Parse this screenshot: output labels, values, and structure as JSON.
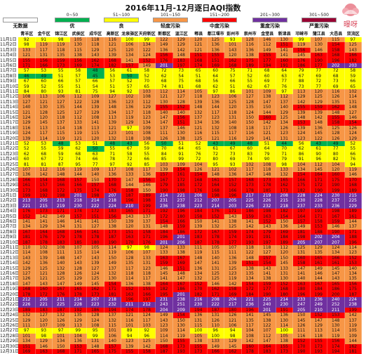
{
  "title": "2016年11月-12月逐日AQI指数",
  "legend": [
    {
      "range": "",
      "label": "无数据",
      "color": "#ffffff"
    },
    {
      "range": "0~50",
      "label": "优",
      "color": "#00b050"
    },
    {
      "range": "51~100",
      "label": "良",
      "color": "#ffff00"
    },
    {
      "range": "101~150",
      "label": "轻度污染",
      "color": "#f79646"
    },
    {
      "range": "151~200",
      "label": "中度污染",
      "color": "#ff0000"
    },
    {
      "range": "201~300",
      "label": "重度污染",
      "color": "#7030a0"
    },
    {
      "range": "301~500",
      "label": "严重污染",
      "color": "#990033"
    }
  ],
  "logo_text": "曝呀",
  "chart_data": {
    "type": "heatmap",
    "title": "2016年11月-12月逐日AQI指数",
    "columns": [
      "青羊区",
      "金牛区",
      "锦江区",
      "武侯区",
      "成华区",
      "高新区",
      "龙泉驿区",
      "天府新区",
      "新都区",
      "温江区",
      "郫县",
      "都江堰市",
      "彭州市",
      "崇州市",
      "金堂县",
      "新津县",
      "邛崃市",
      "蒲江县",
      "大邑县",
      "双流区"
    ],
    "rows": [
      "11月1日",
      "11月2日",
      "11月3日",
      "11月4日",
      "11月5日",
      "11月6日",
      "11月7日",
      "11月8日",
      "11月9日",
      "11月10日",
      "11月11日",
      "11月12日",
      "11月13日",
      "11月14日",
      "11月15日",
      "11月16日",
      "11月17日",
      "11月18日",
      "11月19日",
      "11月20日",
      "11月21日",
      "11月22日",
      "11月23日",
      "11月24日",
      "11月25日",
      "11月26日",
      "11月27日",
      "11月28日",
      "11月29日",
      "11月30日",
      "12月1日",
      "12月2日",
      "12月3日",
      "12月4日",
      "12月5日",
      "12月6日",
      "12月7日",
      "12月8日",
      "12月9日",
      "12月10日",
      "12月11日",
      "12月12日",
      "12月13日",
      "12月14日",
      "12月15日",
      "12月16日",
      "12月17日",
      "12月18日",
      "12月19日",
      "12月20日",
      "12月21日",
      "12月22日",
      "12月23日",
      "12月24日",
      "12月25日",
      "12月26日",
      "12月27日",
      "12月28日",
      "12月29日",
      "12月30日",
      "12月31日"
    ],
    "values": [
      [
        92,
        91,
        98,
        105,
        118,
        116,
        100,
        99,
        122,
        129,
        120,
        125,
        93,
        128,
        146,
        130,
        99,
        107,
        115,
        97
      ],
      [
        98,
        119,
        119,
        130,
        118,
        121,
        106,
        134,
        149,
        129,
        121,
        136,
        101,
        116,
        112,
        151,
        119,
        130,
        154,
        125
      ],
      [
        133,
        117,
        118,
        115,
        129,
        125,
        120,
        122,
        136,
        142,
        121,
        136,
        143,
        136,
        149,
        141,
        156,
        146,
        158,
        143
      ],
      [
        121,
        131,
        135,
        138,
        143,
        139,
        134,
        124,
        156,
        148,
        151,
        155,
        120,
        138,
        155,
        141,
        145,
        163,
        168,
        166
      ],
      [
        155,
        156,
        159,
        156,
        162,
        168,
        141,
        152,
        176,
        183,
        168,
        151,
        162,
        175,
        177,
        160,
        176,
        190,
        196,
        182
      ],
      [
        171,
        166,
        173,
        169,
        174,
        182,
        157,
        149,
        201,
        197,
        174,
        169,
        168,
        189,
        194,
        191,
        186,
        177,
        202,
        203
      ],
      [
        57,
        53,
        55,
        58,
        48,
        56,
        61,
        58,
        72,
        73,
        65,
        60,
        75,
        71,
        68,
        64,
        79,
        77,
        72,
        58
      ],
      [
        46,
        49,
        51,
        57,
        45,
        53,
        50,
        52,
        62,
        54,
        51,
        64,
        57,
        52,
        60,
        63,
        67,
        69,
        68,
        59
      ],
      [
        67,
        60,
        66,
        57,
        66,
        57,
        52,
        70,
        68,
        75,
        68,
        56,
        66,
        55,
        69,
        77,
        88,
        72,
        73,
        66
      ],
      [
        59,
        52,
        55,
        51,
        54,
        51,
        57,
        65,
        74,
        81,
        68,
        62,
        51,
        62,
        67,
        76,
        73,
        77,
        69,
        65
      ],
      [
        84,
        80,
        93,
        81,
        75,
        94,
        92,
        103,
        112,
        114,
        105,
        97,
        86,
        101,
        109,
        97,
        113,
        120,
        116,
        102
      ],
      [
        108,
        113,
        106,
        112,
        109,
        127,
        102,
        108,
        121,
        127,
        118,
        123,
        106,
        127,
        138,
        112,
        129,
        125,
        126,
        114
      ],
      [
        127,
        121,
        127,
        122,
        128,
        136,
        123,
        112,
        130,
        128,
        139,
        136,
        125,
        128,
        147,
        137,
        142,
        129,
        135,
        131
      ],
      [
        140,
        130,
        135,
        144,
        139,
        148,
        136,
        129,
        155,
        152,
        148,
        144,
        120,
        135,
        150,
        140,
        155,
        159,
        162,
        148
      ],
      [
        121,
        128,
        125,
        127,
        129,
        134,
        117,
        118,
        140,
        140,
        132,
        117,
        118,
        124,
        144,
        129,
        139,
        139,
        148,
        127
      ],
      [
        124,
        120,
        118,
        112,
        108,
        113,
        119,
        123,
        147,
        156,
        137,
        123,
        131,
        150,
        160,
        125,
        148,
        142,
        155,
        146
      ],
      [
        129,
        145,
        137,
        133,
        141,
        139,
        129,
        134,
        147,
        151,
        134,
        136,
        140,
        150,
        142,
        134,
        153,
        148,
        158,
        154
      ],
      [
        116,
        113,
        114,
        118,
        113,
        121,
        97,
        109,
        137,
        146,
        121,
        132,
        108,
        118,
        117,
        126,
        139,
        136,
        125,
        126
      ],
      [
        124,
        117,
        115,
        119,
        115,
        123,
        101,
        108,
        111,
        130,
        116,
        115,
        117,
        116,
        121,
        123,
        124,
        145,
        128,
        124
      ],
      [
        139,
        114,
        119,
        121,
        120,
        132,
        118,
        108,
        126,
        138,
        125,
        121,
        116,
        129,
        141,
        131,
        123,
        122,
        126,
        129
      ],
      [
        52,
        53,
        48,
        53,
        51,
        48,
        43,
        56,
        50,
        51,
        52,
        43,
        49,
        48,
        51,
        44,
        56,
        43,
        49,
        52
      ],
      [
        52,
        55,
        59,
        62,
        50,
        55,
        67,
        59,
        70,
        64,
        65,
        61,
        67,
        60,
        64,
        70,
        62,
        61,
        77,
        55
      ],
      [
        62,
        68,
        59,
        68,
        63,
        71,
        58,
        55,
        84,
        91,
        76,
        72,
        73,
        83,
        79,
        71,
        86,
        90,
        80,
        66
      ],
      [
        60,
        67,
        72,
        74,
        66,
        78,
        72,
        66,
        85,
        99,
        72,
        80,
        69,
        74,
        90,
        79,
        91,
        96,
        82,
        76
      ],
      [
        81,
        81,
        87,
        95,
        77,
        97,
        92,
        85,
        103,
        109,
        104,
        95,
        93,
        102,
        108,
        98,
        104,
        112,
        104,
        94
      ],
      [
        107,
        112,
        116,
        119,
        109,
        117,
        108,
        117,
        139,
        154,
        126,
        121,
        102,
        117,
        118,
        133,
        134,
        145,
        120,
        119
      ],
      [
        136,
        142,
        148,
        144,
        140,
        136,
        133,
        136,
        157,
        161,
        154,
        148,
        136,
        147,
        148,
        132,
        154,
        164,
        160,
        146
      ],
      [
        166,
        154,
        168,
        157,
        150,
        170,
        147,
        156,
        167,
        172,
        168,
        161,
        157,
        168,
        173,
        165,
        166,
        171,
        175,
        170
      ],
      [
        161,
        157,
        166,
        166,
        157,
        168,
        144,
        146,
        179,
        185,
        172,
        164,
        152,
        173,
        178,
        162,
        175,
        172,
        190,
        168
      ],
      [
        173,
        168,
        172,
        175,
        174,
        176,
        158,
        150,
        190,
        198,
        176,
        168,
        166,
        178,
        185,
        173,
        182,
        190,
        199,
        189
      ],
      [
        199,
        192,
        198,
        201,
        198,
        207,
        187,
        189,
        214,
        221,
        206,
        198,
        196,
        217,
        219,
        208,
        228,
        224,
        230,
        215
      ],
      [
        213,
        205,
        213,
        218,
        214,
        218,
        196,
        198,
        231,
        237,
        212,
        207,
        205,
        225,
        226,
        215,
        230,
        228,
        237,
        225
      ],
      [
        221,
        215,
        219,
        230,
        222,
        224,
        210,
        199,
        236,
        238,
        223,
        214,
        203,
        226,
        232,
        218,
        237,
        233,
        236,
        229
      ],
      [
        176,
        173,
        171,
        174,
        172,
        183,
        165,
        171,
        192,
        196,
        184,
        176,
        171,
        186,
        198,
        182,
        197,
        193,
        198,
        189
      ],
      [
        152,
        142,
        149,
        157,
        151,
        156,
        143,
        137,
        172,
        180,
        158,
        152,
        143,
        159,
        163,
        154,
        164,
        171,
        167,
        161
      ],
      [
        141,
        141,
        146,
        141,
        141,
        150,
        139,
        137,
        154,
        166,
        150,
        141,
        138,
        141,
        152,
        150,
        157,
        158,
        159,
        144
      ],
      [
        134,
        129,
        134,
        131,
        127,
        138,
        120,
        131,
        148,
        159,
        139,
        132,
        125,
        142,
        143,
        136,
        149,
        153,
        146,
        137
      ],
      [
        167,
        164,
        168,
        166,
        161,
        173,
        151,
        158,
        184,
        186,
        172,
        167,
        159,
        174,
        179,
        169,
        181,
        188,
        190,
        171
      ],
      [
        181,
        176,
        179,
        178,
        178,
        187,
        163,
        171,
        196,
        201,
        183,
        178,
        174,
        191,
        191,
        184,
        198,
        202,
        204,
        188
      ],
      [
        187,
        178,
        183,
        185,
        180,
        190,
        170,
        176,
        201,
        206,
        187,
        178,
        177,
        193,
        197,
        189,
        205,
        207,
        207,
        196
      ],
      [
        110,
        102,
        108,
        107,
        105,
        114,
        97,
        98,
        124,
        133,
        111,
        105,
        107,
        118,
        118,
        112,
        125,
        129,
        124,
        114
      ],
      [
        114,
        108,
        111,
        115,
        114,
        119,
        106,
        107,
        133,
        138,
        119,
        115,
        111,
        122,
        127,
        120,
        131,
        135,
        134,
        123
      ],
      [
        143,
        139,
        148,
        147,
        143,
        150,
        128,
        133,
        163,
        167,
        148,
        140,
        136,
        148,
        157,
        150,
        160,
        165,
        166,
        152
      ],
      [
        142,
        136,
        140,
        143,
        139,
        149,
        135,
        131,
        159,
        169,
        147,
        141,
        139,
        151,
        154,
        145,
        158,
        161,
        161,
        153
      ],
      [
        129,
        125,
        132,
        128,
        127,
        137,
        117,
        123,
        146,
        151,
        136,
        131,
        125,
        138,
        143,
        133,
        147,
        149,
        145,
        140
      ],
      [
        127,
        121,
        128,
        126,
        124,
        132,
        118,
        118,
        145,
        148,
        134,
        125,
        123,
        135,
        141,
        131,
        141,
        146,
        147,
        134
      ],
      [
        126,
        121,
        125,
        129,
        125,
        130,
        114,
        117,
        141,
        147,
        132,
        125,
        119,
        134,
        138,
        130,
        140,
        144,
        143,
        135
      ],
      [
        147,
        143,
        147,
        149,
        145,
        154,
        136,
        138,
        164,
        167,
        152,
        146,
        142,
        154,
        159,
        152,
        163,
        167,
        165,
        156
      ],
      [
        168,
        160,
        167,
        165,
        162,
        171,
        152,
        155,
        182,
        186,
        170,
        162,
        158,
        172,
        177,
        168,
        180,
        184,
        186,
        175
      ],
      [
        178,
        172,
        176,
        178,
        173,
        181,
        163,
        166,
        195,
        201,
        182,
        171,
        169,
        184,
        190,
        180,
        196,
        199,
        200,
        187
      ],
      [
        212,
        205,
        211,
        214,
        207,
        218,
        196,
        197,
        231,
        238,
        216,
        208,
        204,
        221,
        225,
        214,
        233,
        236,
        240,
        224
      ],
      [
        226,
        221,
        225,
        228,
        223,
        232,
        211,
        212,
        243,
        251,
        230,
        222,
        217,
        236,
        240,
        230,
        247,
        249,
        252,
        238
      ],
      [
        189,
        183,
        187,
        192,
        186,
        194,
        174,
        178,
        204,
        209,
        194,
        187,
        180,
        196,
        201,
        191,
        205,
        210,
        211,
        199
      ],
      [
        132,
        127,
        132,
        135,
        128,
        137,
        121,
        124,
        149,
        154,
        136,
        131,
        126,
        141,
        145,
        136,
        150,
        152,
        153,
        142
      ],
      [
        129,
        120,
        126,
        129,
        124,
        132,
        116,
        117,
        143,
        150,
        131,
        126,
        121,
        135,
        138,
        130,
        145,
        147,
        148,
        137
      ],
      [
        111,
        107,
        109,
        113,
        108,
        115,
        101,
        103,
        123,
        130,
        115,
        110,
        106,
        117,
        122,
        114,
        126,
        129,
        130,
        119
      ],
      [
        97,
        93,
        97,
        99,
        95,
        101,
        89,
        92,
        109,
        114,
        100,
        96,
        94,
        104,
        107,
        100,
        111,
        113,
        114,
        105
      ],
      [
        101,
        98,
        101,
        104,
        99,
        106,
        94,
        96,
        114,
        119,
        105,
        100,
        98,
        108,
        112,
        105,
        116,
        118,
        119,
        109
      ],
      [
        134,
        129,
        134,
        136,
        131,
        140,
        123,
        125,
        150,
        155,
        138,
        133,
        129,
        142,
        147,
        138,
        152,
        155,
        156,
        144
      ],
      [
        151,
        146,
        150,
        153,
        148,
        157,
        139,
        142,
        168,
        173,
        155,
        149,
        145,
        160,
        164,
        155,
        170,
        173,
        174,
        162
      ],
      [
        169,
        163,
        168,
        171,
        165,
        175,
        155,
        158,
        187,
        193,
        173,
        166,
        162,
        178,
        183,
        173,
        190,
        193,
        194,
        181
      ]
    ]
  }
}
